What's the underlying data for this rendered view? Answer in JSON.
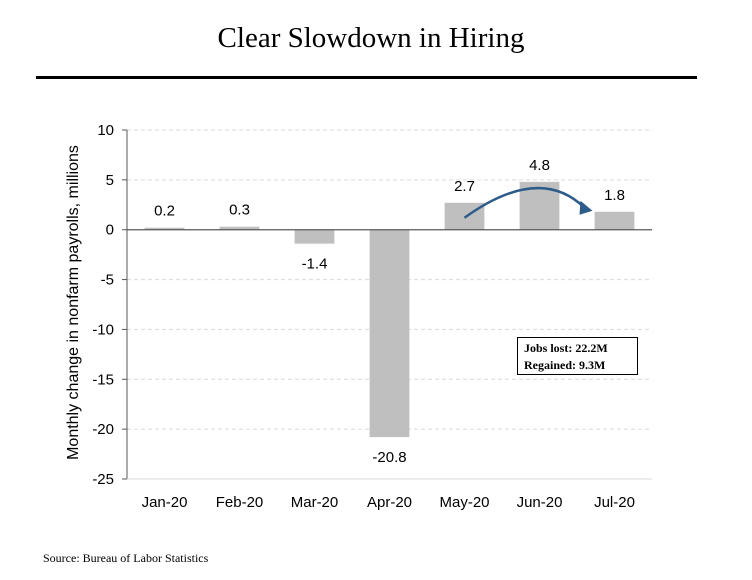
{
  "title": "Clear Slowdown in Hiring",
  "source": "Source: Bureau of Labor Statistics",
  "annotation": {
    "line1": "Jobs lost: 22.2M",
    "line2": "Regained: 9.3M"
  },
  "colors": {
    "bar": "#bfbfbf",
    "arrow": "#2e5c8a",
    "gridline": "#d9d9d9",
    "axis": "#595959"
  },
  "chart_data": {
    "type": "bar",
    "categories": [
      "Jan-20",
      "Feb-20",
      "Mar-20",
      "Apr-20",
      "May-20",
      "Jun-20",
      "Jul-20"
    ],
    "values": [
      0.2,
      0.3,
      -1.4,
      -20.8,
      2.7,
      4.8,
      1.8
    ],
    "data_labels": [
      "0.2",
      "0.3",
      "-1.4",
      "-20.8",
      "2.7",
      "4.8",
      "1.8"
    ],
    "ylabel": "Monthly change in nonfarm payrolls, millions",
    "xlabel": "",
    "ylim": [
      -25,
      10
    ],
    "yticks": [
      10,
      5,
      0,
      -5,
      -10,
      -15,
      -20,
      -25
    ],
    "ytick_labels": [
      "10",
      "5",
      "0",
      "-5",
      "-10",
      "-15",
      "-20",
      "-25"
    ],
    "grid": true,
    "legend": "none"
  }
}
